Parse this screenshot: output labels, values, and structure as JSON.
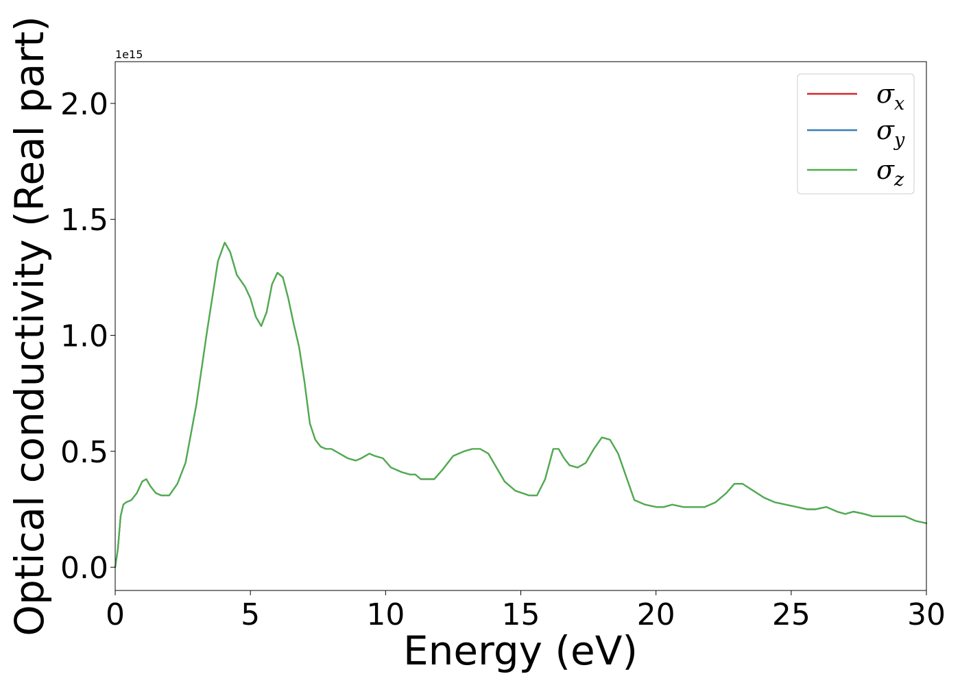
{
  "chart_data": {
    "type": "line",
    "xlabel": "Energy (eV)",
    "ylabel": "Optical conductivity (Real part)",
    "y_offset_label": "1e15",
    "xlim": [
      0,
      30
    ],
    "ylim": [
      -0.1,
      2.18
    ],
    "x_ticks": [
      0,
      5,
      10,
      15,
      20,
      25,
      30
    ],
    "x_tick_labels": [
      "0",
      "5",
      "10",
      "15",
      "20",
      "25",
      "30"
    ],
    "y_ticks": [
      0.0,
      0.5,
      1.0,
      1.5,
      2.0
    ],
    "y_tick_labels": [
      "0.0",
      "0.5",
      "1.0",
      "1.5",
      "2.0"
    ],
    "grid": false,
    "legend_position": "top-right",
    "x": [
      0,
      0.1,
      0.2,
      0.3,
      0.4,
      0.6,
      0.8,
      1.0,
      1.15,
      1.3,
      1.5,
      1.7,
      2.0,
      2.3,
      2.6,
      3.0,
      3.4,
      3.8,
      4.05,
      4.25,
      4.5,
      4.8,
      5.0,
      5.2,
      5.4,
      5.6,
      5.8,
      6.0,
      6.2,
      6.4,
      6.6,
      6.8,
      7.0,
      7.2,
      7.4,
      7.6,
      7.8,
      8.0,
      8.3,
      8.6,
      8.9,
      9.1,
      9.4,
      9.6,
      9.9,
      10.2,
      10.6,
      10.9,
      11.1,
      11.3,
      11.5,
      11.8,
      12.1,
      12.5,
      12.9,
      13.2,
      13.5,
      13.8,
      14.1,
      14.4,
      14.8,
      15.3,
      15.6,
      15.9,
      16.2,
      16.4,
      16.6,
      16.8,
      17.1,
      17.4,
      17.7,
      18.0,
      18.3,
      18.6,
      18.9,
      19.2,
      19.6,
      20.0,
      20.3,
      20.6,
      21.0,
      21.4,
      21.8,
      22.2,
      22.6,
      22.9,
      23.2,
      23.6,
      24.0,
      24.4,
      24.8,
      25.2,
      25.6,
      25.9,
      26.3,
      26.7,
      27.0,
      27.3,
      27.7,
      28.0,
      28.4,
      28.8,
      29.2,
      29.6,
      30.0
    ],
    "series": [
      {
        "name": "σx",
        "color": "#d62728",
        "values": [
          0.0,
          0.08,
          0.22,
          0.27,
          0.28,
          0.29,
          0.32,
          0.37,
          0.38,
          0.35,
          0.32,
          0.31,
          0.31,
          0.36,
          0.45,
          0.7,
          1.02,
          1.32,
          1.4,
          1.36,
          1.26,
          1.21,
          1.16,
          1.08,
          1.04,
          1.1,
          1.22,
          1.27,
          1.25,
          1.16,
          1.05,
          0.95,
          0.8,
          0.62,
          0.55,
          0.52,
          0.51,
          0.51,
          0.49,
          0.47,
          0.46,
          0.47,
          0.49,
          0.48,
          0.47,
          0.43,
          0.41,
          0.4,
          0.4,
          0.38,
          0.38,
          0.38,
          0.42,
          0.48,
          0.5,
          0.51,
          0.51,
          0.49,
          0.43,
          0.37,
          0.33,
          0.31,
          0.31,
          0.38,
          0.51,
          0.51,
          0.47,
          0.44,
          0.43,
          0.45,
          0.51,
          0.56,
          0.55,
          0.49,
          0.39,
          0.29,
          0.27,
          0.26,
          0.26,
          0.27,
          0.26,
          0.26,
          0.26,
          0.28,
          0.32,
          0.36,
          0.36,
          0.33,
          0.3,
          0.28,
          0.27,
          0.26,
          0.25,
          0.25,
          0.26,
          0.24,
          0.23,
          0.24,
          0.23,
          0.22,
          0.22,
          0.22,
          0.22,
          0.2,
          0.19
        ]
      },
      {
        "name": "σy",
        "color": "#377eb8",
        "values": [
          0.0,
          0.08,
          0.22,
          0.27,
          0.28,
          0.29,
          0.32,
          0.37,
          0.38,
          0.35,
          0.32,
          0.31,
          0.31,
          0.36,
          0.45,
          0.7,
          1.02,
          1.32,
          1.4,
          1.36,
          1.26,
          1.21,
          1.16,
          1.08,
          1.04,
          1.1,
          1.22,
          1.27,
          1.25,
          1.16,
          1.05,
          0.95,
          0.8,
          0.62,
          0.55,
          0.52,
          0.51,
          0.51,
          0.49,
          0.47,
          0.46,
          0.47,
          0.49,
          0.48,
          0.47,
          0.43,
          0.41,
          0.4,
          0.4,
          0.38,
          0.38,
          0.38,
          0.42,
          0.48,
          0.5,
          0.51,
          0.51,
          0.49,
          0.43,
          0.37,
          0.33,
          0.31,
          0.31,
          0.38,
          0.51,
          0.51,
          0.47,
          0.44,
          0.43,
          0.45,
          0.51,
          0.56,
          0.55,
          0.49,
          0.39,
          0.29,
          0.27,
          0.26,
          0.26,
          0.27,
          0.26,
          0.26,
          0.26,
          0.28,
          0.32,
          0.36,
          0.36,
          0.33,
          0.3,
          0.28,
          0.27,
          0.26,
          0.25,
          0.25,
          0.26,
          0.24,
          0.23,
          0.24,
          0.23,
          0.22,
          0.22,
          0.22,
          0.22,
          0.2,
          0.19
        ]
      },
      {
        "name": "σz",
        "color": "#4daf4a",
        "values": [
          0.0,
          0.08,
          0.22,
          0.27,
          0.28,
          0.29,
          0.32,
          0.37,
          0.38,
          0.35,
          0.32,
          0.31,
          0.31,
          0.36,
          0.45,
          0.7,
          1.02,
          1.32,
          1.4,
          1.36,
          1.26,
          1.21,
          1.16,
          1.08,
          1.04,
          1.1,
          1.22,
          1.27,
          1.25,
          1.16,
          1.05,
          0.95,
          0.8,
          0.62,
          0.55,
          0.52,
          0.51,
          0.51,
          0.49,
          0.47,
          0.46,
          0.47,
          0.49,
          0.48,
          0.47,
          0.43,
          0.41,
          0.4,
          0.4,
          0.38,
          0.38,
          0.38,
          0.42,
          0.48,
          0.5,
          0.51,
          0.51,
          0.49,
          0.43,
          0.37,
          0.33,
          0.31,
          0.31,
          0.38,
          0.51,
          0.51,
          0.47,
          0.44,
          0.43,
          0.45,
          0.51,
          0.56,
          0.55,
          0.49,
          0.39,
          0.29,
          0.27,
          0.26,
          0.26,
          0.27,
          0.26,
          0.26,
          0.26,
          0.28,
          0.32,
          0.36,
          0.36,
          0.33,
          0.3,
          0.28,
          0.27,
          0.26,
          0.25,
          0.25,
          0.26,
          0.24,
          0.23,
          0.24,
          0.23,
          0.22,
          0.22,
          0.22,
          0.22,
          0.2,
          0.19
        ]
      }
    ],
    "legend": [
      {
        "symbol": "σ",
        "subscript": "x"
      },
      {
        "symbol": "σ",
        "subscript": "y"
      },
      {
        "symbol": "σ",
        "subscript": "z"
      }
    ]
  }
}
